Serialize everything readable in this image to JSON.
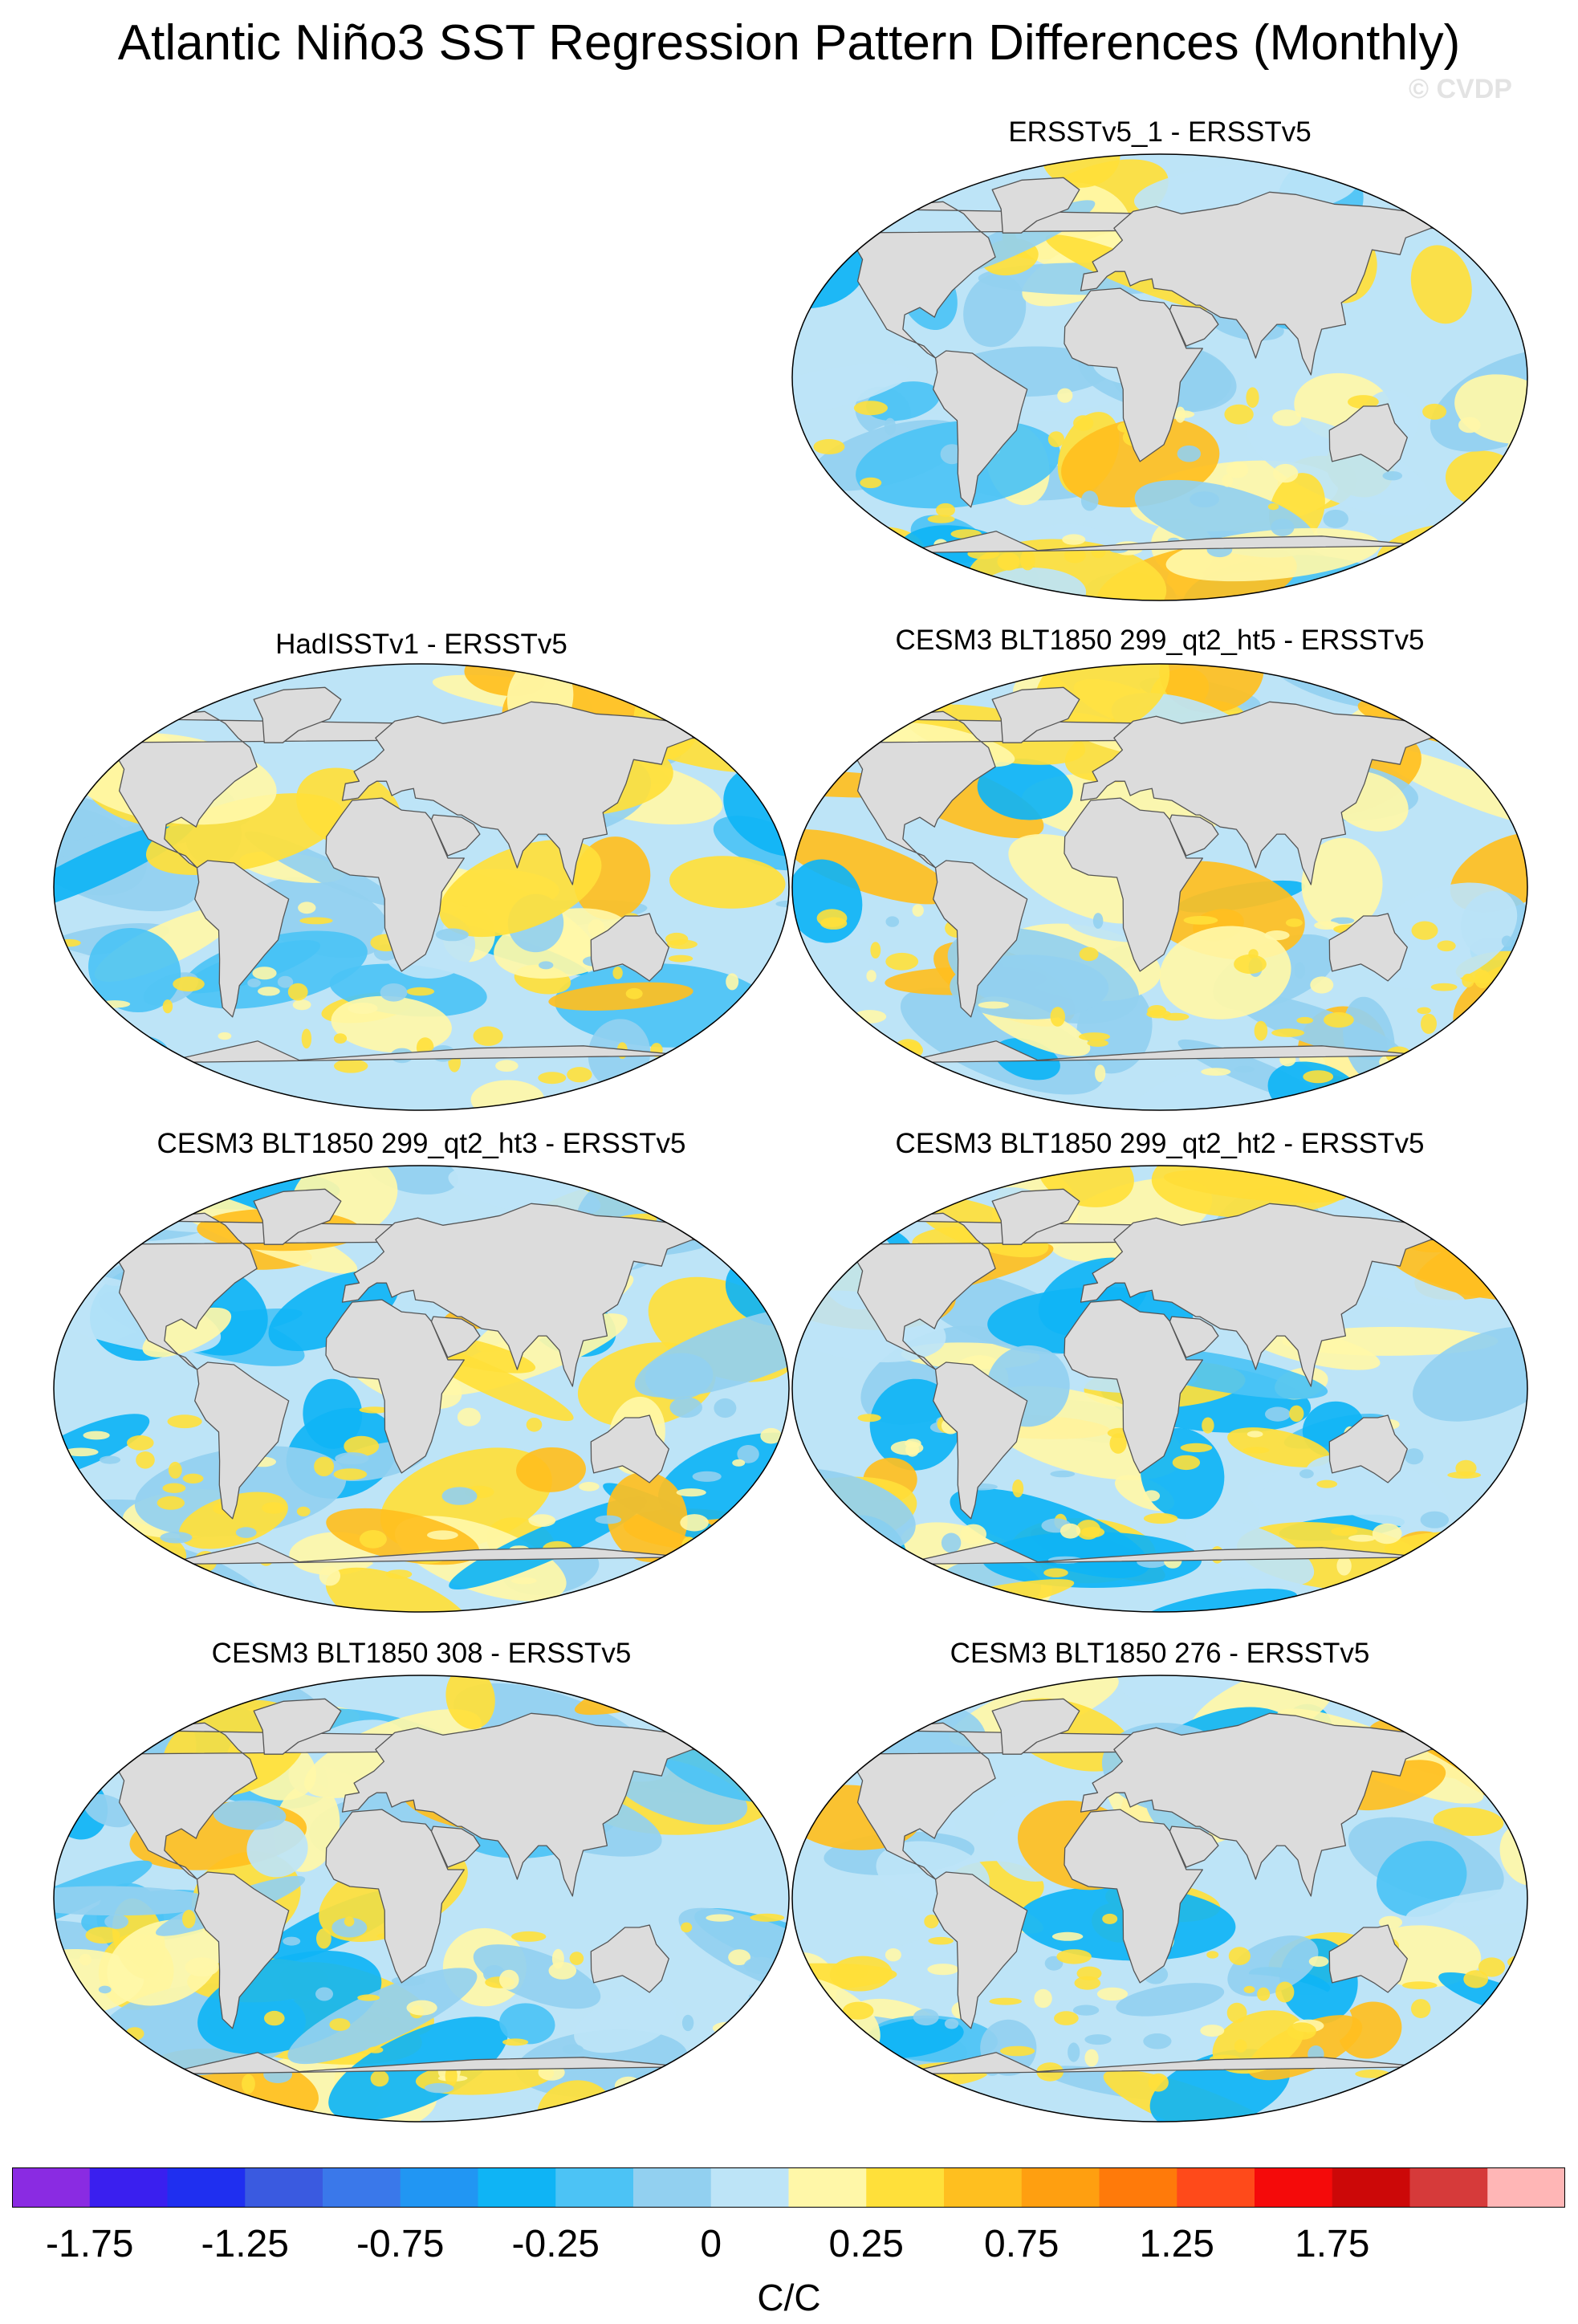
{
  "title": "Atlantic Niño3 SST Regression Pattern Differences (Monthly)",
  "watermark": "© CVDP",
  "panels": [
    {
      "id": "p1",
      "title": "ERSSTv5_1 - ERSSTv5",
      "seed": 11,
      "bias": -0.05
    },
    {
      "id": "p2",
      "title": "HadISSTv1 - ERSSTv5",
      "seed": 23,
      "bias": 0.0
    },
    {
      "id": "p3",
      "title": "CESM3 BLT1850 299_qt2_ht5 - ERSSTv5",
      "seed": 37,
      "bias": 0.05
    },
    {
      "id": "p4",
      "title": "CESM3 BLT1850 299_qt2_ht3 - ERSSTv5",
      "seed": 41,
      "bias": 0.08
    },
    {
      "id": "p5",
      "title": "CESM3 BLT1850 299_qt2_ht2 - ERSSTv5",
      "seed": 53,
      "bias": 0.08
    },
    {
      "id": "p6",
      "title": "CESM3 BLT1850 308 - ERSSTv5",
      "seed": 67,
      "bias": 0.0
    },
    {
      "id": "p7",
      "title": "CESM3 BLT1850 276 - ERSSTv5",
      "seed": 79,
      "bias": 0.02
    }
  ],
  "colorbar": {
    "colors": [
      "#8a2be2",
      "#3a1fef",
      "#1f2ff0",
      "#3a5ae0",
      "#3a78ea",
      "#2196f3",
      "#0fb4f5",
      "#4cc3f5",
      "#92d0f0",
      "#bde4f7",
      "#fff7a8",
      "#ffe03a",
      "#ffbf1f",
      "#ff9f10",
      "#ff7a0a",
      "#ff4a1a",
      "#f50a0a",
      "#cc0808",
      "#d63a3a",
      "#ffb6b6"
    ],
    "labels": [
      "-1.75",
      "-1.25",
      "-0.75",
      "-0.25",
      "0",
      "0.25",
      "0.75",
      "1.25",
      "1.75"
    ],
    "units": "C/C"
  },
  "land_color": "#dcdcdc",
  "coast_color": "#555555"
}
